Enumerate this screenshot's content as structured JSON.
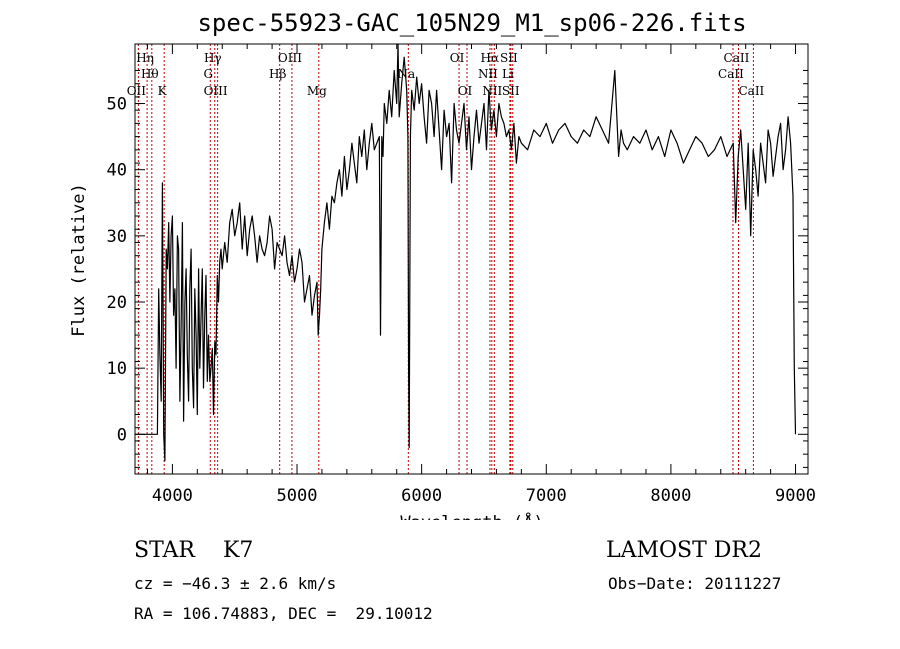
{
  "colors": {
    "spectrum": "#000000",
    "line_marker": "#c00000",
    "axes": "#000000",
    "background": "#ffffff"
  },
  "chart_data": {
    "type": "line",
    "title": "spec-55923-GAC_105N29_M1_sp06-226.fits",
    "xlabel": "Wavelength (Å)",
    "ylabel": "Flux (relative)",
    "xlim": [
      3700,
      9100
    ],
    "ylim": [
      -6,
      59
    ],
    "x_ticks": [
      4000,
      5000,
      6000,
      7000,
      8000,
      9000
    ],
    "y_ticks": [
      0,
      10,
      20,
      30,
      40,
      50
    ],
    "x_tick_labels": [
      "4000",
      "5000",
      "6000",
      "7000",
      "8000",
      "9000"
    ],
    "y_tick_labels": [
      "0",
      "10",
      "20",
      "30",
      "40",
      "50"
    ],
    "grid": false,
    "series": [
      {
        "values_x": [
          3700,
          3880,
          3890,
          3900,
          3910,
          3920,
          3930,
          3940,
          3950,
          3960,
          3970,
          3980,
          3990,
          4000,
          4010,
          4020,
          4030,
          4040,
          4050,
          4060,
          4070,
          4080,
          4090,
          4100,
          4110,
          4120,
          4130,
          4140,
          4150,
          4160,
          4170,
          4180,
          4190,
          4200,
          4210,
          4220,
          4230,
          4240,
          4250,
          4260,
          4270,
          4280,
          4290,
          4300,
          4310,
          4320,
          4330,
          4340,
          4350,
          4360,
          4370,
          4380,
          4390,
          4400,
          4420,
          4440,
          4460,
          4480,
          4500,
          4520,
          4540,
          4560,
          4580,
          4600,
          4620,
          4640,
          4660,
          4680,
          4700,
          4720,
          4740,
          4760,
          4780,
          4800,
          4820,
          4840,
          4860,
          4880,
          4900,
          4920,
          4940,
          4960,
          4980,
          5000,
          5020,
          5040,
          5060,
          5080,
          5100,
          5120,
          5140,
          5160,
          5170,
          5180,
          5190,
          5200,
          5220,
          5240,
          5260,
          5280,
          5300,
          5320,
          5340,
          5360,
          5380,
          5400,
          5420,
          5440,
          5460,
          5480,
          5500,
          5520,
          5540,
          5560,
          5580,
          5600,
          5620,
          5640,
          5660,
          5670,
          5680,
          5690,
          5700,
          5720,
          5740,
          5760,
          5780,
          5800,
          5810,
          5820,
          5840,
          5860,
          5880,
          5890,
          5895,
          5900,
          5910,
          5920,
          5940,
          5960,
          5980,
          6000,
          6020,
          6040,
          6060,
          6080,
          6100,
          6120,
          6140,
          6160,
          6180,
          6200,
          6220,
          6240,
          6260,
          6280,
          6300,
          6320,
          6340,
          6360,
          6380,
          6400,
          6420,
          6440,
          6460,
          6480,
          6500,
          6520,
          6540,
          6560,
          6580,
          6600,
          6620,
          6640,
          6660,
          6680,
          6700,
          6720,
          6740,
          6760,
          6780,
          6800,
          6850,
          6900,
          6950,
          7000,
          7050,
          7100,
          7150,
          7200,
          7250,
          7300,
          7350,
          7400,
          7450,
          7500,
          7550,
          7580,
          7600,
          7620,
          7650,
          7700,
          7750,
          7800,
          7850,
          7900,
          7950,
          8000,
          8050,
          8100,
          8150,
          8200,
          8250,
          8300,
          8350,
          8400,
          8450,
          8500,
          8520,
          8540,
          8560,
          8580,
          8600,
          8620,
          8640,
          8660,
          8680,
          8700,
          8720,
          8740,
          8760,
          8780,
          8800,
          8820,
          8840,
          8860,
          8880,
          8900,
          8920,
          8940,
          8960,
          8980,
          8990,
          9000
        ],
        "values_y": [
          0,
          0,
          22,
          12,
          5,
          38,
          0,
          -4,
          28,
          25,
          32,
          20,
          30,
          33,
          18,
          22,
          10,
          30,
          28,
          5,
          16,
          32,
          2,
          20,
          25,
          12,
          5,
          22,
          28,
          10,
          4,
          22,
          15,
          3,
          25,
          10,
          18,
          25,
          7,
          18,
          24,
          8,
          15,
          8,
          10,
          13,
          3,
          14,
          12,
          24,
          20,
          26,
          28,
          25,
          29,
          26,
          32,
          34,
          30,
          32,
          35,
          28,
          33,
          27,
          31,
          33,
          30,
          26,
          30,
          28,
          27,
          29,
          33,
          31,
          25,
          29,
          28,
          27,
          30,
          26,
          24,
          27,
          23,
          25,
          28,
          26,
          20,
          22,
          24,
          18,
          21,
          23,
          15,
          18,
          22,
          28,
          32,
          35,
          31,
          36,
          35,
          38,
          40,
          36,
          42,
          37,
          40,
          44,
          41,
          38,
          45,
          42,
          46,
          40,
          44,
          47,
          43,
          44,
          45,
          15,
          45,
          42,
          50,
          47,
          52,
          48,
          55,
          50,
          59,
          48,
          53,
          57,
          52,
          45,
          10,
          -2,
          45,
          52,
          49,
          54,
          50,
          53,
          48,
          44,
          52,
          50,
          45,
          52,
          46,
          40,
          49,
          45,
          47,
          38,
          50,
          46,
          44,
          47,
          50,
          43,
          48,
          40,
          45,
          49,
          44,
          47,
          50,
          43,
          52,
          46,
          49,
          45,
          50,
          48,
          47,
          45,
          46,
          43,
          47,
          41,
          45,
          44,
          43,
          46,
          45,
          47,
          44,
          46,
          47,
          45,
          44,
          46,
          45,
          48,
          46,
          44,
          55,
          42,
          46,
          44,
          43,
          45,
          44,
          46,
          43,
          45,
          42,
          46,
          44,
          41,
          43,
          45,
          44,
          42,
          43,
          45,
          42,
          44,
          32,
          42,
          46,
          40,
          34,
          44,
          30,
          43,
          40,
          36,
          44,
          41,
          38,
          46,
          44,
          39,
          42,
          45,
          47,
          40,
          43,
          48,
          44,
          36,
          10,
          0
        ]
      }
    ],
    "line_markers": [
      {
        "wavelength": 3727,
        "label": "OII",
        "row": 3
      },
      {
        "wavelength": 3797,
        "label": "Hη",
        "row": 1
      },
      {
        "wavelength": 3835,
        "label": "Hθ",
        "row": 2
      },
      {
        "wavelength": 3934,
        "label": "K",
        "row": 3
      },
      {
        "wavelength": 4304,
        "label": "G",
        "row": 2
      },
      {
        "wavelength": 4340,
        "label": "Hγ",
        "row": 1
      },
      {
        "wavelength": 4363,
        "label": "OIII",
        "row": 3
      },
      {
        "wavelength": 4861,
        "label": "Hβ",
        "row": 2
      },
      {
        "wavelength": 4959,
        "label": "OIII",
        "row": 1
      },
      {
        "wavelength": 5175,
        "label": "Mg",
        "row": 3
      },
      {
        "wavelength": 5893,
        "label": "Na",
        "row": 2
      },
      {
        "wavelength": 6300,
        "label": "OI",
        "row": 1
      },
      {
        "wavelength": 6364,
        "label": "OI",
        "row": 3
      },
      {
        "wavelength": 6548,
        "label": "NII",
        "row": 2
      },
      {
        "wavelength": 6563,
        "label": "Hα",
        "row": 1
      },
      {
        "wavelength": 6583,
        "label": "NII",
        "row": 3
      },
      {
        "wavelength": 6708,
        "label": "Li",
        "row": 2
      },
      {
        "wavelength": 6716,
        "label": "SII",
        "row": 1
      },
      {
        "wavelength": 6731,
        "label": "SII",
        "row": 3
      },
      {
        "wavelength": 8498,
        "label": "CaII",
        "row": 2
      },
      {
        "wavelength": 8542,
        "label": "CaII",
        "row": 1
      },
      {
        "wavelength": 8662,
        "label": "CaII",
        "row": 3
      }
    ]
  },
  "info": {
    "class_line": "STAR    K7",
    "survey": "LAMOST DR2",
    "cz": "cz = −46.3 ± 2.6 km/s",
    "obs_date": "Obs−Date: 20111227",
    "coords": "RA = 106.74883, DEC =  29.10012"
  }
}
